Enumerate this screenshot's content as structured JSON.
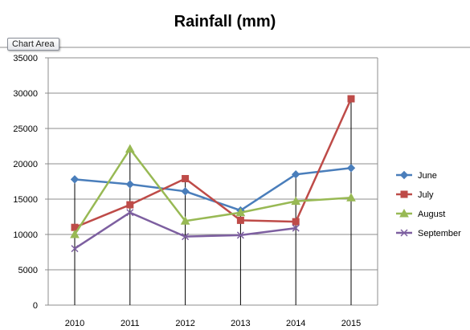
{
  "tooltip": {
    "label": "Chart Area"
  },
  "colors": {
    "grid": "#8c8c8c",
    "plot_border": "#8c8c8c",
    "drop_line": "#000000"
  },
  "chart_data": {
    "type": "line",
    "title": "Rainfall (mm)",
    "categories": [
      "2010",
      "2011",
      "2012",
      "2013",
      "2014",
      "2015"
    ],
    "ylim": [
      0,
      35000
    ],
    "yticks": [
      0,
      5000,
      10000,
      15000,
      20000,
      25000,
      30000,
      35000
    ],
    "grid": true,
    "drop_lines": true,
    "legend": {
      "placement": "right"
    },
    "series": [
      {
        "name": "June",
        "color": "#4a7ebb",
        "marker": "diamond",
        "values": [
          17800,
          17100,
          16100,
          13400,
          18500,
          19400
        ]
      },
      {
        "name": "July",
        "color": "#be4b48",
        "marker": "square",
        "values": [
          11000,
          14200,
          17900,
          12000,
          11800,
          29200
        ]
      },
      {
        "name": "August",
        "color": "#98b954",
        "marker": "triangle",
        "values": [
          10000,
          22100,
          11900,
          13100,
          14700,
          15200
        ]
      },
      {
        "name": "September",
        "color": "#7d5fa0",
        "marker": "x",
        "values": [
          8000,
          13100,
          9700,
          9900,
          10900,
          null
        ]
      }
    ]
  }
}
